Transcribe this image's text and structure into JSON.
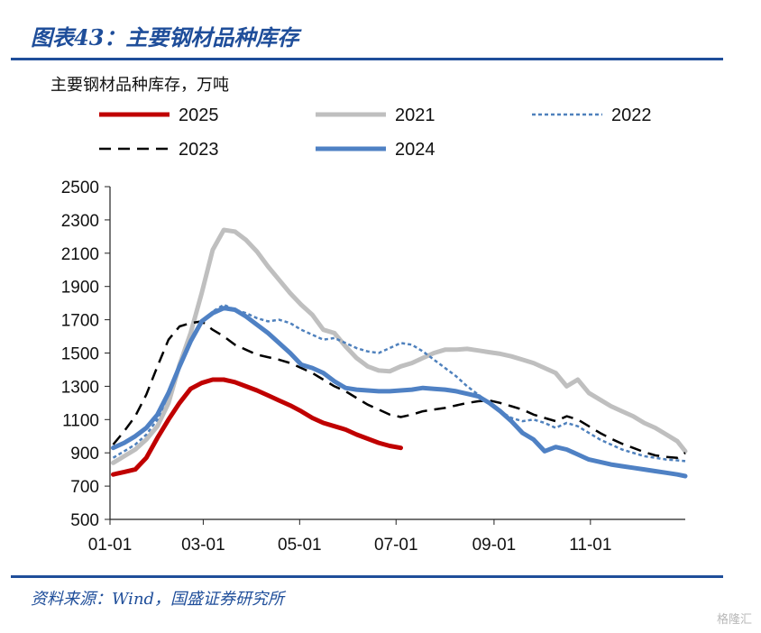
{
  "figure_title": "图表43：主要钢材品种库存",
  "source": "资料来源：Wind，国盛证券研究所",
  "watermark": "格隆汇",
  "chart_data": {
    "type": "line",
    "title": "主要钢材品种库存",
    "ylabel": "主要钢材品种库存，万吨",
    "xlabel": "",
    "ylim": [
      500,
      2500
    ],
    "yticks": [
      500,
      700,
      900,
      1100,
      1300,
      1500,
      1700,
      1900,
      2100,
      2300,
      2500
    ],
    "xlim": [
      "01-01",
      "12-31"
    ],
    "xticks": [
      "01-01",
      "03-01",
      "05-01",
      "07-01",
      "09-01",
      "11-01"
    ],
    "grid": false,
    "legend": "top",
    "series": [
      {
        "name": "2025",
        "color": "#c00000",
        "style": "solid",
        "width": 5,
        "points": [
          [
            "01-03",
            770
          ],
          [
            "01-10",
            785
          ],
          [
            "01-17",
            800
          ],
          [
            "01-24",
            870
          ],
          [
            "01-31",
            990
          ],
          [
            "02-07",
            1100
          ],
          [
            "02-14",
            1200
          ],
          [
            "02-21",
            1285
          ],
          [
            "02-28",
            1320
          ],
          [
            "03-07",
            1340
          ],
          [
            "03-14",
            1340
          ],
          [
            "03-21",
            1325
          ],
          [
            "03-28",
            1300
          ],
          [
            "04-04",
            1275
          ],
          [
            "04-11",
            1245
          ],
          [
            "04-18",
            1215
          ],
          [
            "04-25",
            1185
          ],
          [
            "05-02",
            1150
          ],
          [
            "05-09",
            1110
          ],
          [
            "05-16",
            1080
          ],
          [
            "05-23",
            1060
          ],
          [
            "05-30",
            1040
          ],
          [
            "06-06",
            1010
          ],
          [
            "06-13",
            985
          ],
          [
            "06-20",
            960
          ],
          [
            "06-27",
            942
          ],
          [
            "07-04",
            930
          ]
        ]
      },
      {
        "name": "2021",
        "color": "#bfbfbf",
        "style": "solid",
        "width": 5,
        "points": [
          [
            "01-03",
            840
          ],
          [
            "01-10",
            880
          ],
          [
            "01-17",
            920
          ],
          [
            "01-24",
            980
          ],
          [
            "01-31",
            1060
          ],
          [
            "02-07",
            1200
          ],
          [
            "02-14",
            1430
          ],
          [
            "02-21",
            1620
          ],
          [
            "02-28",
            1860
          ],
          [
            "03-07",
            2120
          ],
          [
            "03-14",
            2240
          ],
          [
            "03-21",
            2230
          ],
          [
            "03-28",
            2180
          ],
          [
            "04-04",
            2110
          ],
          [
            "04-11",
            2020
          ],
          [
            "04-18",
            1940
          ],
          [
            "04-25",
            1860
          ],
          [
            "05-02",
            1790
          ],
          [
            "05-09",
            1730
          ],
          [
            "05-16",
            1640
          ],
          [
            "05-23",
            1620
          ],
          [
            "05-30",
            1540
          ],
          [
            "06-06",
            1470
          ],
          [
            "06-13",
            1420
          ],
          [
            "06-20",
            1395
          ],
          [
            "06-27",
            1390
          ],
          [
            "07-04",
            1420
          ],
          [
            "07-11",
            1440
          ],
          [
            "07-18",
            1470
          ],
          [
            "07-25",
            1500
          ],
          [
            "08-01",
            1520
          ],
          [
            "08-08",
            1520
          ],
          [
            "08-15",
            1525
          ],
          [
            "08-22",
            1515
          ],
          [
            "08-29",
            1505
          ],
          [
            "09-05",
            1495
          ],
          [
            "09-12",
            1480
          ],
          [
            "09-19",
            1460
          ],
          [
            "09-26",
            1440
          ],
          [
            "10-03",
            1410
          ],
          [
            "10-10",
            1380
          ],
          [
            "10-17",
            1300
          ],
          [
            "10-24",
            1340
          ],
          [
            "10-31",
            1260
          ],
          [
            "11-07",
            1220
          ],
          [
            "11-14",
            1180
          ],
          [
            "11-21",
            1150
          ],
          [
            "11-28",
            1120
          ],
          [
            "12-05",
            1080
          ],
          [
            "12-12",
            1050
          ],
          [
            "12-19",
            1010
          ],
          [
            "12-26",
            970
          ],
          [
            "12-31",
            910
          ]
        ]
      },
      {
        "name": "2022",
        "color": "#4f81bd",
        "style": "dotted",
        "width": 2.5,
        "points": [
          [
            "01-03",
            870
          ],
          [
            "01-10",
            910
          ],
          [
            "01-17",
            950
          ],
          [
            "01-24",
            1010
          ],
          [
            "01-31",
            1100
          ],
          [
            "02-07",
            1250
          ],
          [
            "02-14",
            1420
          ],
          [
            "02-21",
            1560
          ],
          [
            "02-28",
            1680
          ],
          [
            "03-07",
            1750
          ],
          [
            "03-14",
            1790
          ],
          [
            "03-21",
            1760
          ],
          [
            "03-28",
            1740
          ],
          [
            "04-04",
            1710
          ],
          [
            "04-11",
            1690
          ],
          [
            "04-18",
            1700
          ],
          [
            "04-25",
            1680
          ],
          [
            "05-02",
            1640
          ],
          [
            "05-09",
            1610
          ],
          [
            "05-16",
            1580
          ],
          [
            "05-23",
            1590
          ],
          [
            "05-30",
            1560
          ],
          [
            "06-06",
            1530
          ],
          [
            "06-13",
            1510
          ],
          [
            "06-20",
            1500
          ],
          [
            "06-27",
            1530
          ],
          [
            "07-04",
            1560
          ],
          [
            "07-11",
            1550
          ],
          [
            "07-18",
            1510
          ],
          [
            "07-25",
            1460
          ],
          [
            "08-01",
            1410
          ],
          [
            "08-08",
            1360
          ],
          [
            "08-15",
            1300
          ],
          [
            "08-22",
            1250
          ],
          [
            "08-29",
            1200
          ],
          [
            "09-05",
            1150
          ],
          [
            "09-12",
            1110
          ],
          [
            "09-19",
            1090
          ],
          [
            "09-26",
            1100
          ],
          [
            "10-03",
            1080
          ],
          [
            "10-10",
            1050
          ],
          [
            "10-17",
            1080
          ],
          [
            "10-24",
            1060
          ],
          [
            "10-31",
            1020
          ],
          [
            "11-07",
            980
          ],
          [
            "11-14",
            950
          ],
          [
            "11-21",
            920
          ],
          [
            "11-28",
            900
          ],
          [
            "12-05",
            880
          ],
          [
            "12-12",
            870
          ],
          [
            "12-19",
            860
          ],
          [
            "12-26",
            855
          ],
          [
            "12-31",
            850
          ]
        ]
      },
      {
        "name": "2023",
        "color": "#000000",
        "style": "dashed",
        "width": 2.5,
        "points": [
          [
            "01-03",
            950
          ],
          [
            "01-10",
            1030
          ],
          [
            "01-17",
            1120
          ],
          [
            "01-24",
            1250
          ],
          [
            "01-31",
            1420
          ],
          [
            "02-07",
            1580
          ],
          [
            "02-14",
            1660
          ],
          [
            "02-21",
            1680
          ],
          [
            "02-28",
            1690
          ],
          [
            "03-07",
            1640
          ],
          [
            "03-14",
            1600
          ],
          [
            "03-21",
            1550
          ],
          [
            "03-28",
            1520
          ],
          [
            "04-04",
            1490
          ],
          [
            "04-11",
            1475
          ],
          [
            "04-18",
            1460
          ],
          [
            "04-25",
            1440
          ],
          [
            "05-02",
            1410
          ],
          [
            "05-09",
            1380
          ],
          [
            "05-16",
            1340
          ],
          [
            "05-23",
            1300
          ],
          [
            "05-30",
            1270
          ],
          [
            "06-06",
            1230
          ],
          [
            "06-13",
            1190
          ],
          [
            "06-20",
            1160
          ],
          [
            "06-27",
            1130
          ],
          [
            "07-04",
            1115
          ],
          [
            "07-11",
            1130
          ],
          [
            "07-18",
            1150
          ],
          [
            "07-25",
            1160
          ],
          [
            "08-01",
            1170
          ],
          [
            "08-08",
            1185
          ],
          [
            "08-15",
            1200
          ],
          [
            "08-22",
            1210
          ],
          [
            "08-29",
            1215
          ],
          [
            "09-05",
            1200
          ],
          [
            "09-12",
            1180
          ],
          [
            "09-19",
            1160
          ],
          [
            "09-26",
            1130
          ],
          [
            "10-03",
            1110
          ],
          [
            "10-10",
            1090
          ],
          [
            "10-17",
            1120
          ],
          [
            "10-24",
            1100
          ],
          [
            "10-31",
            1060
          ],
          [
            "11-07",
            1020
          ],
          [
            "11-14",
            985
          ],
          [
            "11-21",
            955
          ],
          [
            "11-28",
            930
          ],
          [
            "12-05",
            905
          ],
          [
            "12-12",
            885
          ],
          [
            "12-19",
            875
          ],
          [
            "12-26",
            870
          ],
          [
            "12-31",
            900
          ]
        ]
      },
      {
        "name": "2024",
        "color": "#4f81c4",
        "style": "solid",
        "width": 5,
        "points": [
          [
            "01-03",
            930
          ],
          [
            "01-10",
            960
          ],
          [
            "01-17",
            1000
          ],
          [
            "01-24",
            1050
          ],
          [
            "01-31",
            1130
          ],
          [
            "02-07",
            1260
          ],
          [
            "02-14",
            1420
          ],
          [
            "02-21",
            1570
          ],
          [
            "02-28",
            1690
          ],
          [
            "03-07",
            1740
          ],
          [
            "03-14",
            1770
          ],
          [
            "03-21",
            1760
          ],
          [
            "03-28",
            1720
          ],
          [
            "04-04",
            1670
          ],
          [
            "04-11",
            1620
          ],
          [
            "04-18",
            1560
          ],
          [
            "04-25",
            1500
          ],
          [
            "05-02",
            1430
          ],
          [
            "05-09",
            1410
          ],
          [
            "05-16",
            1380
          ],
          [
            "05-23",
            1330
          ],
          [
            "05-30",
            1290
          ],
          [
            "06-06",
            1280
          ],
          [
            "06-13",
            1275
          ],
          [
            "06-20",
            1270
          ],
          [
            "06-27",
            1270
          ],
          [
            "07-04",
            1275
          ],
          [
            "07-11",
            1280
          ],
          [
            "07-18",
            1290
          ],
          [
            "07-25",
            1285
          ],
          [
            "08-01",
            1280
          ],
          [
            "08-08",
            1270
          ],
          [
            "08-15",
            1255
          ],
          [
            "08-22",
            1240
          ],
          [
            "08-29",
            1200
          ],
          [
            "09-05",
            1150
          ],
          [
            "09-12",
            1090
          ],
          [
            "09-19",
            1020
          ],
          [
            "09-26",
            980
          ],
          [
            "10-03",
            910
          ],
          [
            "10-10",
            935
          ],
          [
            "10-17",
            920
          ],
          [
            "10-24",
            890
          ],
          [
            "10-31",
            860
          ],
          [
            "11-07",
            845
          ],
          [
            "11-14",
            830
          ],
          [
            "11-21",
            820
          ],
          [
            "11-28",
            810
          ],
          [
            "12-05",
            800
          ],
          [
            "12-12",
            790
          ],
          [
            "12-19",
            780
          ],
          [
            "12-26",
            770
          ],
          [
            "12-31",
            760
          ]
        ]
      }
    ]
  }
}
